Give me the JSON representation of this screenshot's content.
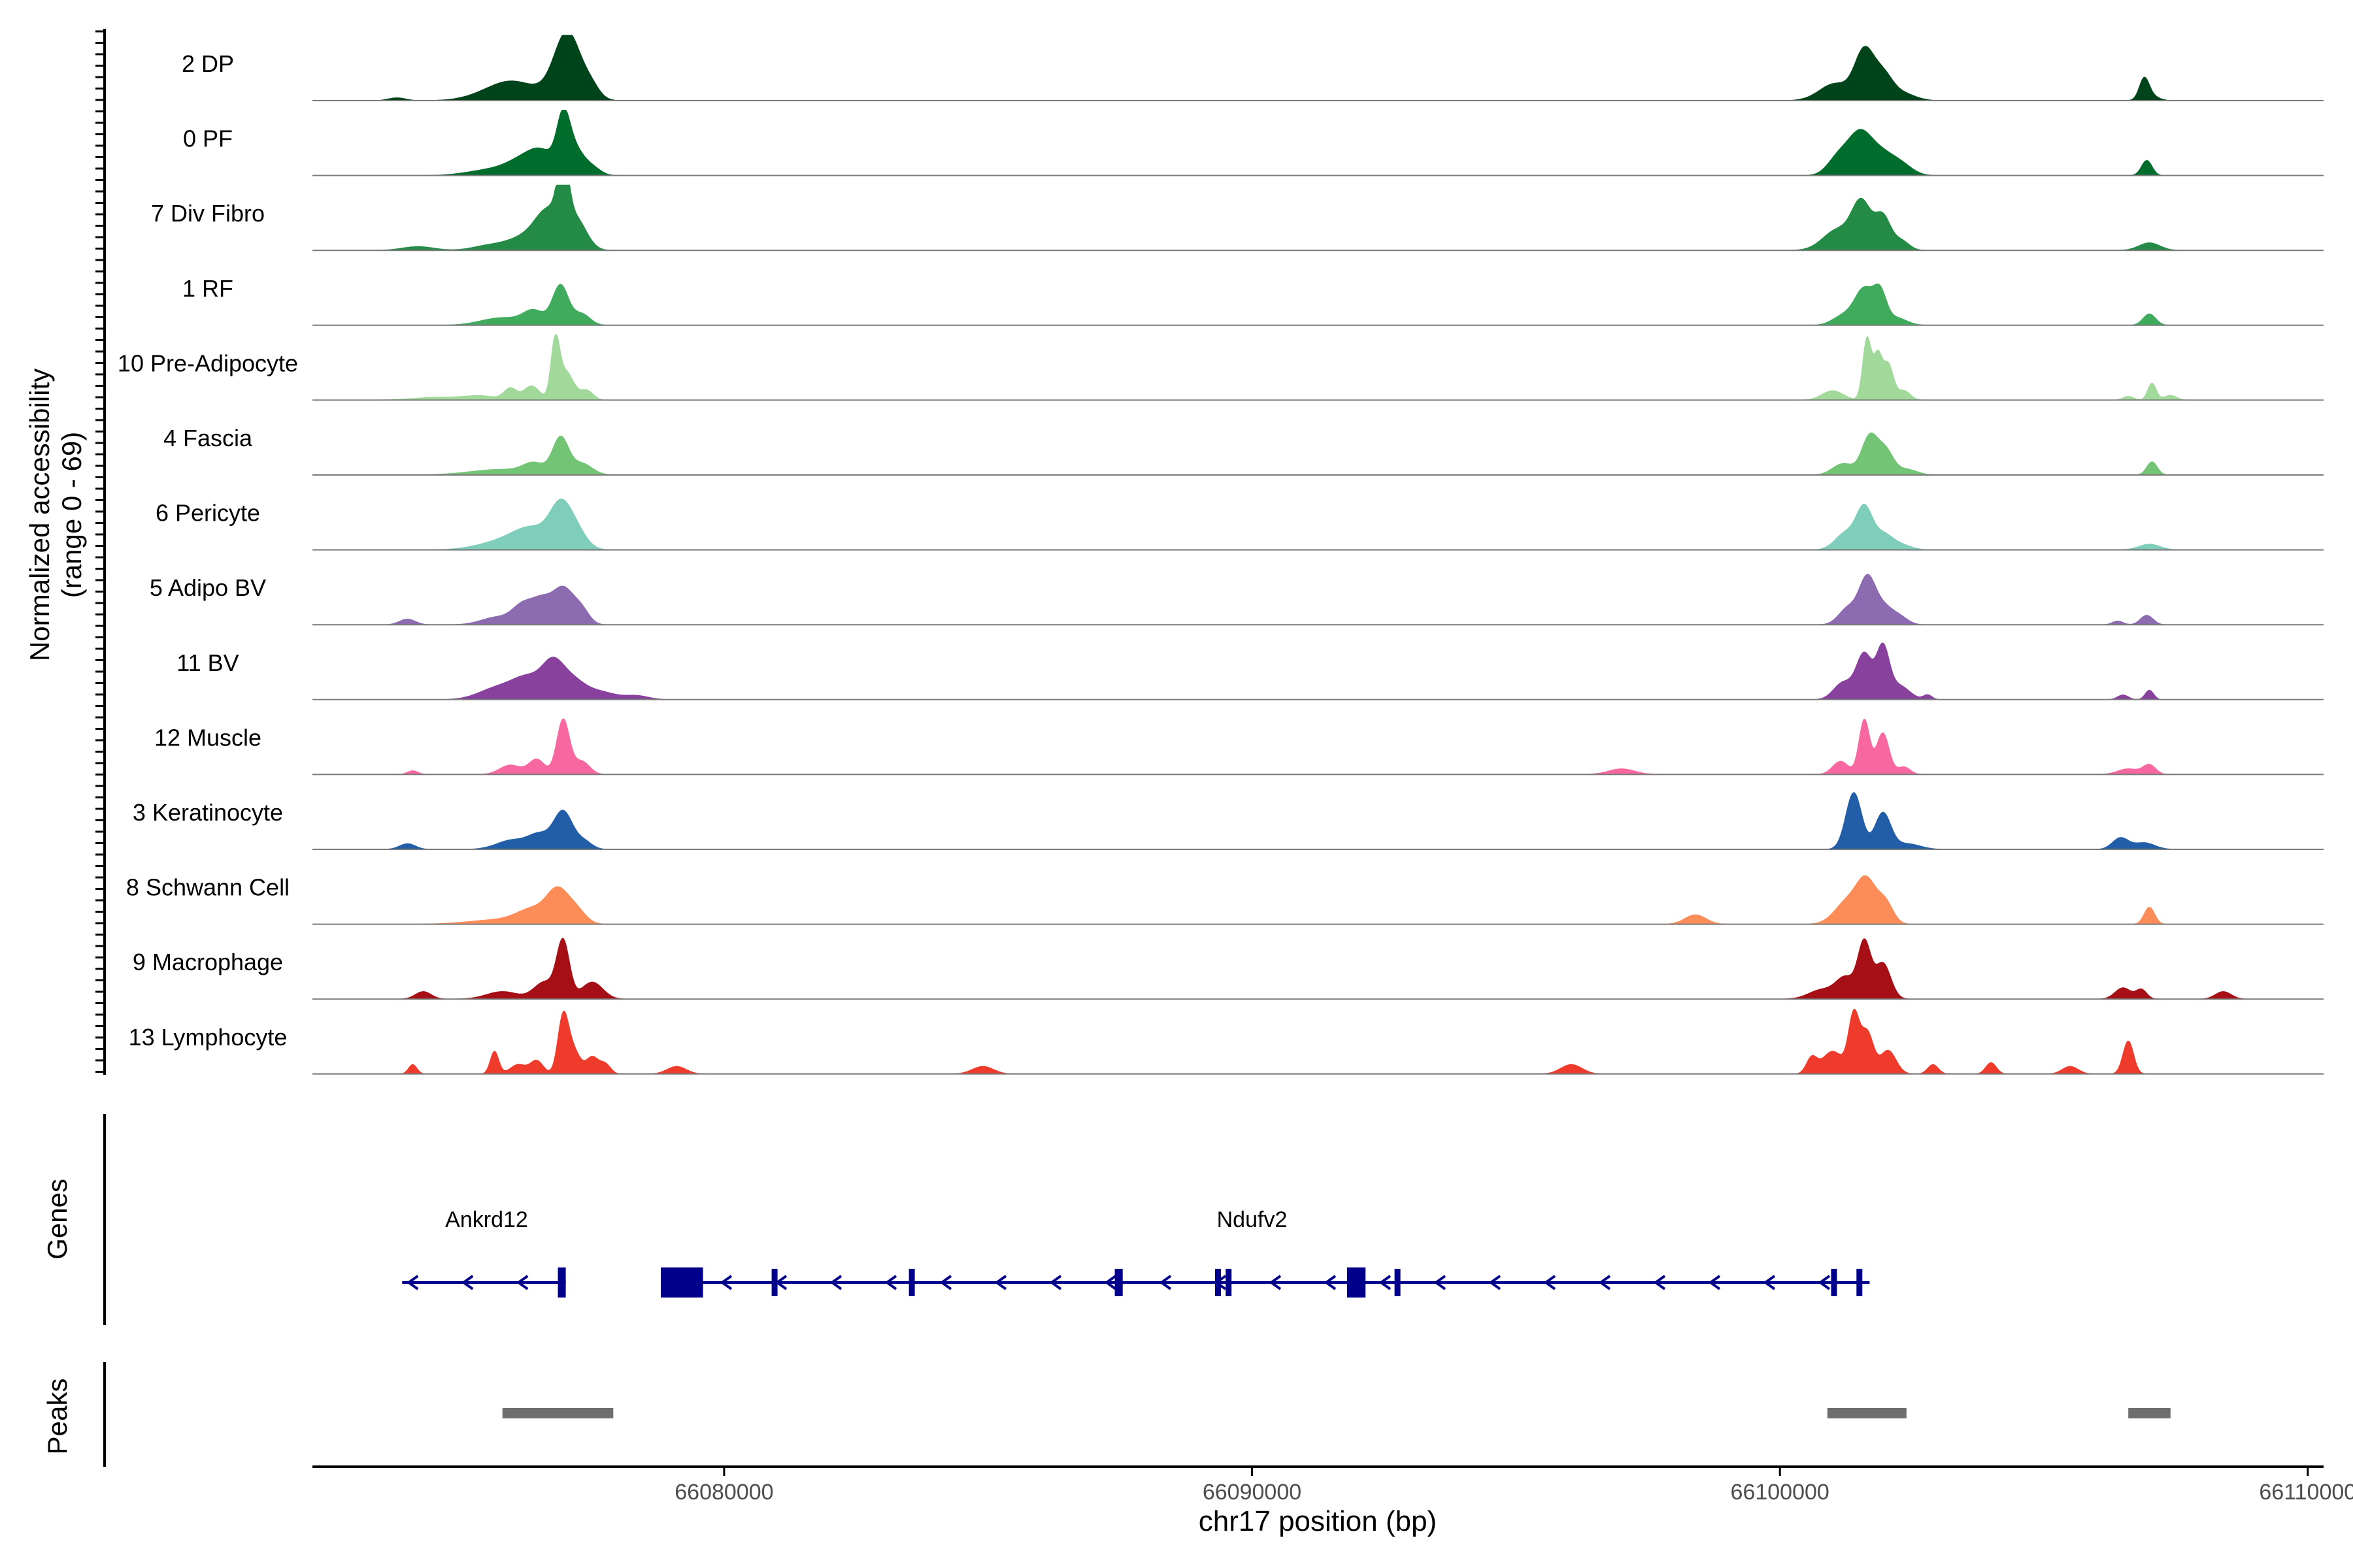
{
  "chart_data": {
    "type": "area",
    "xlabel": "chr17 position (bp)",
    "ylabel": "Normalized accessibility",
    "ylabel_range": "(range 0 - 69)",
    "ylim": [
      0,
      69
    ],
    "xlim": [
      66072200,
      66110300
    ],
    "xticks": [
      66080000,
      66090000,
      66100000,
      66110000
    ],
    "xtick_labels": [
      "66080000",
      "66090000",
      "66100000",
      "66110000"
    ],
    "tracks": [
      {
        "name": "2 DP",
        "color": "#00441b",
        "peaks": [
          [
            66073800,
            160,
            3
          ],
          [
            66075700,
            450,
            10
          ],
          [
            66076100,
            400,
            13
          ],
          [
            66076900,
            300,
            15
          ],
          [
            66077000,
            220,
            42
          ],
          [
            66077200,
            250,
            22
          ],
          [
            66077500,
            150,
            8
          ],
          [
            66101050,
            300,
            18
          ],
          [
            66101600,
            180,
            50
          ],
          [
            66101950,
            180,
            25
          ],
          [
            66102300,
            250,
            8
          ],
          [
            66106900,
            90,
            20
          ],
          [
            66107000,
            150,
            6
          ]
        ]
      },
      {
        "name": "0 PF",
        "color": "#006d2c",
        "peaks": [
          [
            66075600,
            450,
            6
          ],
          [
            66076300,
            350,
            18
          ],
          [
            66076600,
            250,
            14
          ],
          [
            66076950,
            120,
            48
          ],
          [
            66077150,
            180,
            28
          ],
          [
            66077500,
            160,
            8
          ],
          [
            66101100,
            200,
            18
          ],
          [
            66101500,
            220,
            40
          ],
          [
            66101900,
            250,
            22
          ],
          [
            66102300,
            220,
            10
          ],
          [
            66106950,
            100,
            16
          ]
        ]
      },
      {
        "name": "7 Div Fibro",
        "color": "#238b45",
        "peaks": [
          [
            66074200,
            300,
            4
          ],
          [
            66075500,
            300,
            4
          ],
          [
            66076300,
            400,
            15
          ],
          [
            66076700,
            250,
            35
          ],
          [
            66076950,
            100,
            68
          ],
          [
            66077200,
            200,
            30
          ],
          [
            66101100,
            280,
            22
          ],
          [
            66101550,
            180,
            48
          ],
          [
            66101950,
            150,
            35
          ],
          [
            66102300,
            150,
            10
          ],
          [
            66107000,
            200,
            8
          ]
        ]
      },
      {
        "name": "1 RF",
        "color": "#41ab5d",
        "peaks": [
          [
            66075800,
            400,
            8
          ],
          [
            66076400,
            200,
            14
          ],
          [
            66076900,
            150,
            42
          ],
          [
            66077300,
            160,
            12
          ],
          [
            66101200,
            200,
            10
          ],
          [
            66101600,
            180,
            38
          ],
          [
            66101900,
            120,
            30
          ],
          [
            66102200,
            200,
            8
          ],
          [
            66107000,
            120,
            12
          ]
        ]
      },
      {
        "name": "10 Pre-Adipocyte",
        "color": "#a1d99b",
        "peaks": [
          [
            66074600,
            500,
            3
          ],
          [
            66075400,
            300,
            4
          ],
          [
            66075950,
            120,
            12
          ],
          [
            66076350,
            150,
            15
          ],
          [
            66076800,
            80,
            58
          ],
          [
            66077000,
            150,
            30
          ],
          [
            66077400,
            120,
            10
          ],
          [
            66101000,
            200,
            10
          ],
          [
            66101650,
            80,
            65
          ],
          [
            66101850,
            80,
            45
          ],
          [
            66102050,
            100,
            38
          ],
          [
            66102350,
            120,
            10
          ],
          [
            66106600,
            100,
            4
          ],
          [
            66107050,
            80,
            18
          ],
          [
            66107400,
            120,
            5
          ]
        ]
      },
      {
        "name": "4 Fascia",
        "color": "#74c476",
        "peaks": [
          [
            66075800,
            600,
            6
          ],
          [
            66076400,
            200,
            10
          ],
          [
            66076900,
            150,
            38
          ],
          [
            66077300,
            200,
            12
          ],
          [
            66101200,
            200,
            12
          ],
          [
            66101700,
            150,
            40
          ],
          [
            66102000,
            150,
            25
          ],
          [
            66102400,
            200,
            6
          ],
          [
            66107050,
            100,
            14
          ]
        ]
      },
      {
        "name": "6 Pericyte",
        "color": "#7fcdbb",
        "peaks": [
          [
            66075900,
            500,
            10
          ],
          [
            66076400,
            350,
            18
          ],
          [
            66076900,
            200,
            40
          ],
          [
            66077200,
            200,
            18
          ],
          [
            66101250,
            200,
            18
          ],
          [
            66101600,
            150,
            42
          ],
          [
            66101950,
            180,
            16
          ],
          [
            66102300,
            200,
            5
          ],
          [
            66107000,
            200,
            6
          ]
        ]
      },
      {
        "name": "5 Adipo BV",
        "color": "#8c6bb1",
        "peaks": [
          [
            66074000,
            150,
            6
          ],
          [
            66075700,
            300,
            8
          ],
          [
            66076200,
            200,
            20
          ],
          [
            66076550,
            180,
            22
          ],
          [
            66076950,
            200,
            38
          ],
          [
            66077300,
            150,
            14
          ],
          [
            66101300,
            180,
            18
          ],
          [
            66101650,
            150,
            44
          ],
          [
            66101950,
            200,
            20
          ],
          [
            66102300,
            150,
            6
          ],
          [
            66106400,
            100,
            4
          ],
          [
            66106950,
            120,
            10
          ]
        ]
      },
      {
        "name": "11 BV",
        "color": "#88419d",
        "peaks": [
          [
            66075700,
            350,
            12
          ],
          [
            66076300,
            300,
            22
          ],
          [
            66076750,
            200,
            30
          ],
          [
            66077100,
            250,
            20
          ],
          [
            66077650,
            300,
            8
          ],
          [
            66078350,
            220,
            4
          ],
          [
            66101200,
            180,
            18
          ],
          [
            66101600,
            150,
            48
          ],
          [
            66101950,
            120,
            52
          ],
          [
            66102250,
            200,
            15
          ],
          [
            66102800,
            80,
            5
          ],
          [
            66106500,
            100,
            5
          ],
          [
            66107000,
            80,
            10
          ]
        ]
      },
      {
        "name": "12 Muscle",
        "color": "#f768a1",
        "peaks": [
          [
            66074100,
            100,
            4
          ],
          [
            66075950,
            200,
            10
          ],
          [
            66076450,
            150,
            16
          ],
          [
            66076950,
            120,
            58
          ],
          [
            66077300,
            150,
            14
          ],
          [
            66097000,
            250,
            6
          ],
          [
            66101150,
            150,
            14
          ],
          [
            66101600,
            100,
            58
          ],
          [
            66101950,
            120,
            44
          ],
          [
            66102350,
            120,
            8
          ],
          [
            66106600,
            200,
            6
          ],
          [
            66107000,
            120,
            10
          ]
        ]
      },
      {
        "name": "3 Keratinocyte",
        "color": "#225ea8",
        "peaks": [
          [
            66074000,
            150,
            6
          ],
          [
            66076000,
            300,
            10
          ],
          [
            66076500,
            200,
            14
          ],
          [
            66076950,
            180,
            40
          ],
          [
            66077350,
            150,
            8
          ],
          [
            66101400,
            150,
            60
          ],
          [
            66101950,
            150,
            38
          ],
          [
            66102400,
            250,
            6
          ],
          [
            66106450,
            150,
            12
          ],
          [
            66106900,
            200,
            7
          ]
        ]
      },
      {
        "name": "8 Schwann Cell",
        "color": "#fc8d59",
        "peaks": [
          [
            66075800,
            600,
            5
          ],
          [
            66076400,
            300,
            14
          ],
          [
            66076850,
            200,
            32
          ],
          [
            66077200,
            180,
            14
          ],
          [
            66098400,
            200,
            10
          ],
          [
            66101300,
            250,
            25
          ],
          [
            66101650,
            180,
            40
          ],
          [
            66102000,
            150,
            22
          ],
          [
            66107000,
            100,
            18
          ]
        ]
      },
      {
        "name": "9 Macrophage",
        "color": "#a50f15",
        "peaks": [
          [
            66074300,
            150,
            8
          ],
          [
            66075800,
            300,
            8
          ],
          [
            66076600,
            200,
            18
          ],
          [
            66076950,
            120,
            60
          ],
          [
            66077500,
            200,
            18
          ],
          [
            66100800,
            250,
            10
          ],
          [
            66101250,
            180,
            22
          ],
          [
            66101600,
            120,
            58
          ],
          [
            66101950,
            150,
            38
          ],
          [
            66106500,
            150,
            12
          ],
          [
            66106850,
            100,
            10
          ],
          [
            66108400,
            150,
            8
          ]
        ]
      },
      {
        "name": "13 Lymphocyte",
        "color": "#ef3b2c",
        "peaks": [
          [
            66074100,
            80,
            10
          ],
          [
            66075650,
            80,
            24
          ],
          [
            66076100,
            150,
            10
          ],
          [
            66076450,
            120,
            14
          ],
          [
            66076950,
            100,
            60
          ],
          [
            66077150,
            120,
            24
          ],
          [
            66077500,
            120,
            18
          ],
          [
            66077750,
            100,
            10
          ],
          [
            66079100,
            180,
            8
          ],
          [
            66084900,
            200,
            8
          ],
          [
            66096050,
            200,
            10
          ],
          [
            66100600,
            100,
            16
          ],
          [
            66101000,
            200,
            24
          ],
          [
            66101400,
            100,
            60
          ],
          [
            66101650,
            120,
            44
          ],
          [
            66102050,
            150,
            25
          ],
          [
            66102900,
            100,
            10
          ],
          [
            66104000,
            100,
            12
          ],
          [
            66105500,
            150,
            8
          ],
          [
            66106600,
            100,
            35
          ]
        ]
      }
    ],
    "genes_track": {
      "label": "Genes",
      "color": "#00008b",
      "genes": [
        {
          "name": "Ankrd12",
          "strand": "-",
          "start": 66073900,
          "end": 66077000,
          "label_x": 66075500,
          "exons": [
            [
              66076850,
              66077000,
              "tall"
            ]
          ]
        },
        {
          "name": "Ndufv2",
          "strand": "-",
          "start": 66078800,
          "end": 66101700,
          "label_x": 66090000,
          "exons": [
            [
              66078800,
              66079600,
              "tall"
            ],
            [
              66080900,
              66080960,
              "short"
            ],
            [
              66083500,
              66083580,
              "short"
            ],
            [
              66087400,
              66087550,
              "short"
            ],
            [
              66089300,
              66089380,
              "short"
            ],
            [
              66089500,
              66089560,
              "short"
            ],
            [
              66091800,
              66092150,
              "tall"
            ],
            [
              66092700,
              66092740,
              "short"
            ],
            [
              66100970,
              66101030,
              "short"
            ],
            [
              66101450,
              66101530,
              "short"
            ]
          ]
        }
      ]
    },
    "peaks_track": {
      "label": "Peaks",
      "color": "#6e6e6e",
      "regions": [
        [
          66075800,
          66077900
        ],
        [
          66100900,
          66102400
        ],
        [
          66106600,
          66107400
        ]
      ]
    }
  }
}
